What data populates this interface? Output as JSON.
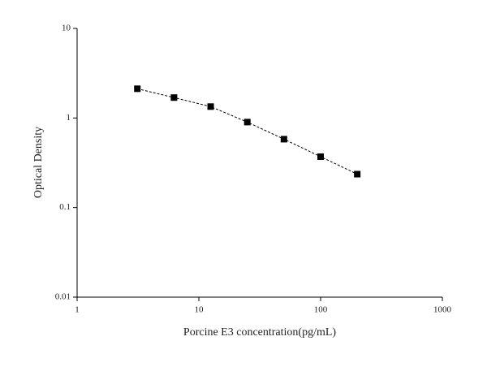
{
  "chart_data": {
    "type": "line",
    "x": [
      3.125,
      6.25,
      12.5,
      25,
      50,
      100,
      200
    ],
    "values": [
      2.12,
      1.69,
      1.34,
      0.9,
      0.58,
      0.37,
      0.236
    ],
    "color": "#000000",
    "line_style": "dashed",
    "marker": "square",
    "xlabel": "Porcine E3 concentration(pg/mL)",
    "ylabel": "Optical Density",
    "xlim": [
      1,
      1000
    ],
    "ylim": [
      0.01,
      10
    ],
    "xticks": [
      1,
      10,
      100,
      1000
    ],
    "yticks": [
      0.01,
      0.1,
      1,
      10
    ],
    "xscale": "log",
    "yscale": "log"
  }
}
